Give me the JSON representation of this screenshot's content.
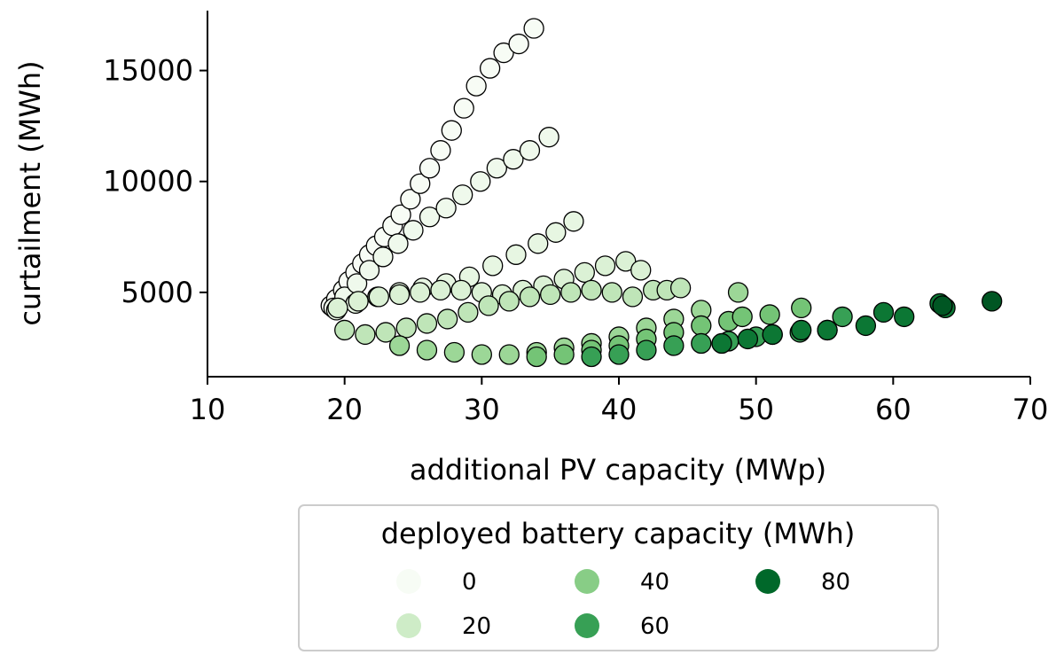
{
  "chart_data": {
    "type": "scatter",
    "title": "",
    "xlabel": "additional PV capacity (MWp)",
    "ylabel": "curtailment (MWh)",
    "xlim": [
      10,
      70
    ],
    "ylim": [
      1200,
      17700
    ],
    "x_ticks": [
      10,
      20,
      30,
      40,
      50,
      60,
      70
    ],
    "y_ticks": [
      5000,
      10000,
      15000
    ],
    "grid": false,
    "legend": {
      "title": "deployed battery capacity (MWh)",
      "placement": "below",
      "entries": [
        {
          "label": "0",
          "battery": 0
        },
        {
          "label": "20",
          "battery": 20
        },
        {
          "label": "40",
          "battery": 40
        },
        {
          "label": "60",
          "battery": 60
        },
        {
          "label": "80",
          "battery": 80
        }
      ]
    },
    "color_scale": {
      "name": "Greens",
      "min": 0,
      "max": 90,
      "stops": [
        "#f7fcf5",
        "#e5f5e0",
        "#c7e9c0",
        "#a1d99b",
        "#74c476",
        "#41ab5d",
        "#238b45",
        "#006d2c",
        "#00441b"
      ]
    },
    "series": [
      {
        "battery": 0,
        "x": [
          19.0,
          19.4,
          19.9,
          20.3,
          20.8,
          21.3,
          21.8,
          22.3,
          22.9,
          23.5,
          24.1,
          24.8,
          25.5,
          26.2,
          27.0,
          27.8,
          28.7,
          29.6,
          30.6,
          31.6,
          32.7,
          33.8
        ],
        "y": [
          4400,
          4700,
          5100,
          5500,
          5900,
          6300,
          6700,
          7100,
          7500,
          8000,
          8500,
          9200,
          9900,
          10600,
          11400,
          12300,
          13300,
          14300,
          15100,
          15800,
          16200,
          16900
        ]
      },
      {
        "battery": 5,
        "x": [
          19.2,
          20.0,
          20.9,
          21.8,
          22.8,
          23.9,
          25.0,
          26.2,
          27.4,
          28.6,
          29.9,
          31.1,
          32.3,
          33.5,
          34.9
        ],
        "y": [
          4300,
          4800,
          5400,
          6000,
          6600,
          7200,
          7800,
          8400,
          8800,
          9400,
          10000,
          10600,
          11000,
          11400,
          12000
        ]
      },
      {
        "battery": 10,
        "x": [
          19.4,
          20.8,
          22.4,
          24.0,
          25.7,
          27.4,
          29.1,
          30.8,
          32.5,
          34.1,
          35.4,
          36.7
        ],
        "y": [
          4200,
          4500,
          4800,
          5000,
          5200,
          5400,
          5700,
          6200,
          6700,
          7200,
          7700,
          8200
        ]
      },
      {
        "battery": 15,
        "x": [
          19.5,
          21.0,
          22.5,
          24.0,
          25.5,
          27.0,
          28.5,
          30.0,
          31.5,
          33.0,
          34.5,
          36.0,
          37.5,
          39.0,
          40.5,
          41.6
        ],
        "y": [
          4300,
          4600,
          4800,
          4900,
          5000,
          5100,
          5100,
          5000,
          4900,
          5100,
          5300,
          5600,
          5900,
          6200,
          6400,
          6000
        ]
      },
      {
        "battery": 25,
        "x": [
          20.0,
          21.5,
          23.0,
          24.5,
          26.0,
          27.5,
          29.0,
          30.5,
          32.0,
          33.5,
          35.0,
          36.5,
          38.0,
          39.5,
          41.0,
          42.5,
          43.5,
          44.5
        ],
        "y": [
          3300,
          3100,
          3200,
          3400,
          3600,
          3800,
          4100,
          4400,
          4600,
          4800,
          4900,
          5000,
          5100,
          5000,
          4800,
          5100,
          5100,
          5200
        ]
      },
      {
        "battery": 35,
        "x": [
          24.0,
          26.0,
          28.0,
          30.0,
          32.0,
          34.0,
          36.0,
          38.0,
          40.0,
          42.0,
          44.0,
          46.0,
          48.7
        ],
        "y": [
          2600,
          2400,
          2300,
          2200,
          2200,
          2300,
          2500,
          2700,
          3000,
          3400,
          3800,
          4200,
          5000
        ]
      },
      {
        "battery": 45,
        "x": [
          34.0,
          36.0,
          38.0,
          40.0,
          42.0,
          44.0,
          46.0,
          48.0,
          49.0,
          51.0,
          53.3
        ],
        "y": [
          2100,
          2200,
          2400,
          2600,
          2900,
          3200,
          3500,
          3700,
          3900,
          4000,
          4300
        ]
      },
      {
        "battery": 60,
        "x": [
          38.0,
          40.0,
          42.0,
          44.0,
          46.0,
          48.0,
          50.0,
          51.2,
          53.2,
          55.2,
          56.3
        ],
        "y": [
          2100,
          2200,
          2400,
          2600,
          2700,
          2800,
          3000,
          3100,
          3200,
          3300,
          3900
        ]
      },
      {
        "battery": 75,
        "x": [
          47.5,
          49.4,
          51.2,
          53.3,
          55.2,
          58.0,
          59.3,
          60.8,
          63.4,
          63.8
        ],
        "y": [
          2700,
          2900,
          3100,
          3300,
          3300,
          3500,
          4100,
          3900,
          4500,
          4300
        ]
      },
      {
        "battery": 85,
        "x": [
          63.6,
          67.2
        ],
        "y": [
          4400,
          4600
        ]
      }
    ]
  }
}
